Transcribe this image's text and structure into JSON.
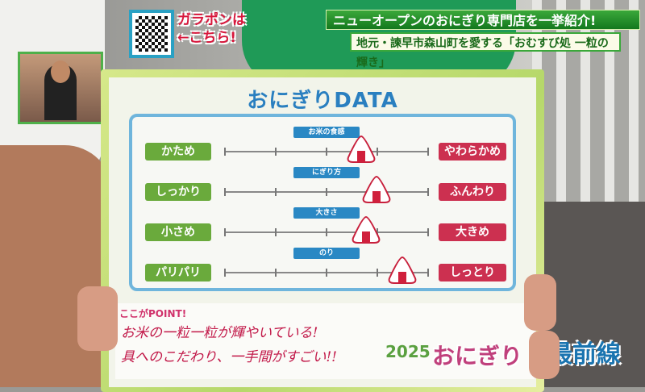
{
  "captions": {
    "headline": "ニューオープンのおにぎり専門店を一挙紹介!",
    "subhead": "地元・諫早市森山町を愛する「おむすび処 一粒の輝き」"
  },
  "qr_promo": {
    "line1": "ガラポンは",
    "line2": "←こちら!"
  },
  "board": {
    "title": "おにぎりDATA",
    "scale_max": 4,
    "rows": [
      {
        "category": "お米の食感",
        "left": "かため",
        "right": "やわらかめ",
        "value": 2.7
      },
      {
        "category": "にぎり方",
        "left": "しっかり",
        "right": "ふんわり",
        "value": 3.0
      },
      {
        "category": "大きさ",
        "left": "小さめ",
        "right": "大きめ",
        "value": 2.8
      },
      {
        "category": "のり",
        "left": "パリパリ",
        "right": "しっとり",
        "value": 3.5
      }
    ],
    "point_title": "ここがPOINT!",
    "point_line1": "お米の一粒一粒が輝やいている!",
    "point_line2": "具へのこだわり、一手間がすごい!!"
  },
  "logo": {
    "year": "2025",
    "name": "おにぎり",
    "suffix": "最前線"
  },
  "colors": {
    "left_label": "#6aaa3c",
    "right_label": "#cc3050",
    "category": "#2a88c4",
    "caption": "#14781e"
  }
}
